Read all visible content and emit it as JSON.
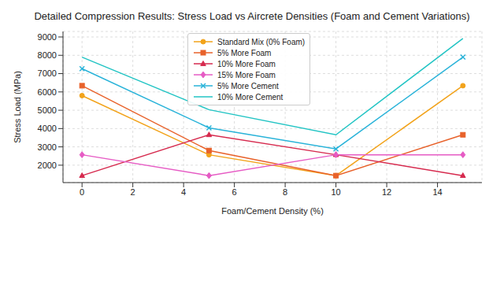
{
  "chart_data": {
    "type": "line",
    "title": "Detailed Compression Results: Stress Load vs Aircrete Densities (Foam and Cement Variations)",
    "x_label": "Foam/Cement Density (%)",
    "y_label": "Stress Load (MPa)",
    "x": [
      0,
      5,
      10,
      15
    ],
    "xlim": [
      -0.75,
      15.75
    ],
    "xticks": [
      0,
      2,
      4,
      6,
      8,
      10,
      12,
      14
    ],
    "ylim": [
      1050,
      9300
    ],
    "yticks": [
      2000,
      3000,
      4000,
      5000,
      6000,
      7000,
      8000,
      9000
    ],
    "grid": true,
    "legend": "upper center",
    "series": [
      {
        "name": "Standard Mix (0% Foam)",
        "color": "#f2a31b",
        "marker": "circle",
        "values": [
          5800,
          2570,
          1430,
          6340
        ]
      },
      {
        "name": "5% More Foam",
        "color": "#e8622b",
        "marker": "square",
        "values": [
          6340,
          2800,
          1430,
          3660
        ]
      },
      {
        "name": "10% More Foam",
        "color": "#d62a4e",
        "marker": "triangle",
        "values": [
          1430,
          3660,
          2570,
          1430
        ]
      },
      {
        "name": "15% More Foam",
        "color": "#e65bc4",
        "marker": "diamond",
        "values": [
          2570,
          1430,
          2570,
          2570
        ]
      },
      {
        "name": "5% More Cement",
        "color": "#29b3d9",
        "marker": "x",
        "values": [
          7270,
          4040,
          2890,
          7900
        ]
      },
      {
        "name": "10% More Cement",
        "color": "#22c4c4",
        "marker": "none",
        "values": [
          7900,
          5030,
          3660,
          8920
        ]
      }
    ]
  }
}
